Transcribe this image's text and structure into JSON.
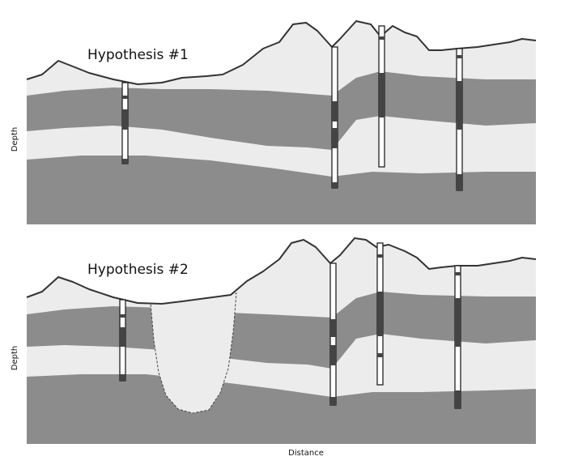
{
  "header": {
    "partial_title": ""
  },
  "panels": [
    {
      "title": "Hypothesis #1",
      "y_axis_label": "Depth"
    },
    {
      "title": "Hypothesis #2",
      "y_axis_label": "Depth"
    }
  ],
  "x_axis_label": "Distance",
  "colors": {
    "light_layer": "#ececec",
    "dark_layer": "#8c8c8c",
    "frame_line": "#333333",
    "well_fill": "#ffffff"
  }
}
